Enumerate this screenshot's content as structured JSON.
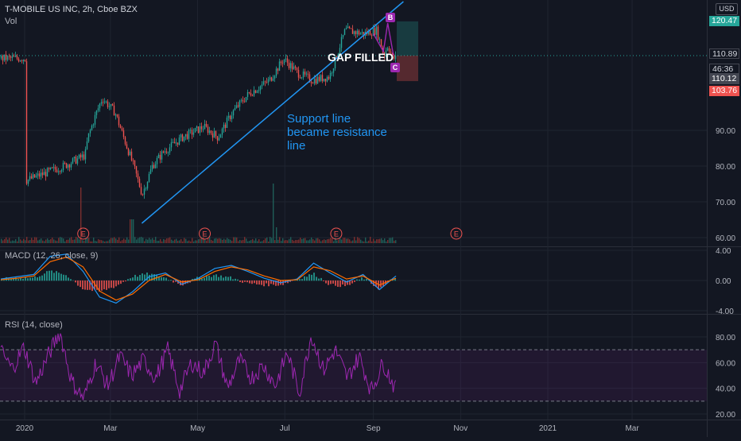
{
  "header": {
    "title": "T-MOBILE US INC, 2h, Cboe BZX",
    "vol_label": "Vol",
    "currency": "USD"
  },
  "macd_pane": {
    "label": "MACD (12, 26, close, 9)"
  },
  "rsi_pane": {
    "label": "RSI (14, close)"
  },
  "annotations": {
    "support_line_1": "Support line",
    "support_line_2": "became resistance",
    "support_line_3": "line",
    "gap_filled": "GAP FILLED",
    "wave_labels": [
      "B",
      "C"
    ],
    "earnings_marker": "E"
  },
  "price_tags": [
    {
      "value": "120.47",
      "color": "#26a69a"
    },
    {
      "value": "110.89",
      "color": "#131722"
    },
    {
      "value": "46:36",
      "color": "#131722"
    },
    {
      "value": "110.12",
      "color": "#434651"
    },
    {
      "value": "103.76",
      "color": "#ef5350"
    }
  ],
  "colors": {
    "background": "#131722",
    "up": "#26a69a",
    "down": "#ef5350",
    "trendline": "#2196f3",
    "rsi": "#9c27b0",
    "macd": "#2196f3",
    "signal": "#ff6d00",
    "grid": "#1f2430"
  },
  "chart_data": [
    {
      "type": "candlestick",
      "title": "T-MOBILE US INC, 2h, Cboe BZX",
      "x_tick_labels": [
        "2020",
        "Mar",
        "May",
        "Jul",
        "Sep",
        "Nov",
        "2021",
        "Mar"
      ],
      "y_tick_labels": [
        "60.00",
        "70.00",
        "80.00",
        "90.00"
      ],
      "ylim": [
        59,
        123
      ],
      "close_path": [
        [
          "2020-01-02",
          76
        ],
        [
          "2020-01-15",
          78
        ],
        [
          "2020-01-28",
          80
        ],
        [
          "2020-02-07",
          82
        ],
        [
          "2020-02-12",
          83
        ],
        [
          "2020-02-14",
          88
        ],
        [
          "2020-02-20",
          95
        ],
        [
          "2020-02-24",
          99
        ],
        [
          "2020-03-04",
          95
        ],
        [
          "2020-03-10",
          88
        ],
        [
          "2020-03-17",
          80
        ],
        [
          "2020-03-23",
          72
        ],
        [
          "2020-03-30",
          80
        ],
        [
          "2020-04-07",
          84
        ],
        [
          "2020-04-20",
          88
        ],
        [
          "2020-05-05",
          91
        ],
        [
          "2020-05-15",
          88
        ],
        [
          "2020-05-25",
          95
        ],
        [
          "2020-06-05",
          100
        ],
        [
          "2020-06-20",
          104
        ],
        [
          "2020-06-30",
          110
        ],
        [
          "2020-07-10",
          106
        ],
        [
          "2020-07-20",
          104
        ],
        [
          "2020-08-01",
          105
        ],
        [
          "2020-08-12",
          118
        ],
        [
          "2020-08-25",
          117
        ],
        [
          "2020-09-03",
          118
        ],
        [
          "2020-09-08",
          111
        ],
        [
          "2020-09-11",
          114
        ],
        [
          "2020-09-14",
          110.12
        ]
      ],
      "trendline": {
        "from": [
          "2020-03-23",
          64
        ],
        "to": [
          "2020-09-22",
          126
        ]
      },
      "earnings_dates": [
        "2020-02-11",
        "2020-05-06",
        "2020-08-06",
        "2020-10-29"
      ],
      "position_tool": {
        "entry": 110.89,
        "target": 120.47,
        "stop": 103.76
      },
      "last_price": 110.12
    },
    {
      "type": "line",
      "title": "MACD (12, 26, close, 9)",
      "y_tick_labels": [
        "4.00",
        "0.00",
        "-4.00"
      ],
      "ylim": [
        -4,
        4
      ],
      "series": [
        {
          "values": [
            0.2,
            0.5,
            0.8,
            3.2,
            3.5,
            1.2,
            -2.2,
            -3.0,
            -1.5,
            0.5,
            1.0,
            -0.5,
            0.3,
            1.6,
            2.0,
            1.2,
            0.3,
            -0.3,
            0.2,
            2.3,
            1.0,
            -0.2,
            0.8,
            -1.2,
            0.6
          ]
        },
        {
          "values": [
            0.1,
            0.3,
            0.6,
            2.5,
            3.1,
            1.8,
            -1.4,
            -2.6,
            -1.8,
            0.0,
            0.8,
            -0.2,
            0.1,
            1.2,
            1.8,
            1.4,
            0.6,
            0.0,
            0.1,
            1.8,
            1.3,
            0.2,
            0.6,
            -0.6,
            0.3
          ]
        }
      ]
    },
    {
      "type": "line",
      "title": "RSI (14, close)",
      "y_tick_labels": [
        "80.00",
        "60.00",
        "40.00",
        "20.00"
      ],
      "ylim": [
        20,
        90
      ],
      "bands": [
        30,
        70
      ],
      "series": [
        {
          "values": [
            70,
            55,
            72,
            44,
            65,
            84,
            45,
            32,
            60,
            42,
            65,
            50,
            62,
            48,
            70,
            38,
            60,
            52,
            75,
            40,
            62,
            48,
            58,
            42,
            68,
            36,
            82,
            54,
            70,
            48,
            65,
            38,
            60,
            40
          ]
        }
      ]
    }
  ]
}
